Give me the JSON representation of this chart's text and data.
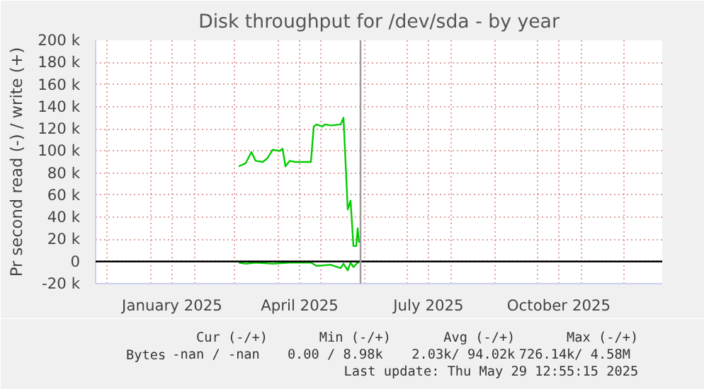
{
  "chart_data": {
    "type": "line",
    "title": "Disk throughput for /dev/sda - by year",
    "ylabel": "Pr second read (-) / write (+)",
    "xlim": [
      "2024-11-23",
      "2025-12-28"
    ],
    "xticks": [
      {
        "value": "2024-12-01",
        "label": null
      },
      {
        "value": "2025-01-01",
        "label": null
      },
      {
        "value": "2025-01-16",
        "label": "January 2025"
      },
      {
        "value": "2025-02-01",
        "label": null
      },
      {
        "value": "2025-03-01",
        "label": null
      },
      {
        "value": "2025-04-01",
        "label": null
      },
      {
        "value": "2025-04-16",
        "label": "April 2025"
      },
      {
        "value": "2025-05-01",
        "label": null
      },
      {
        "value": "2025-06-01",
        "label": null
      },
      {
        "value": "2025-07-01",
        "label": null
      },
      {
        "value": "2025-07-16",
        "label": "July 2025"
      },
      {
        "value": "2025-08-01",
        "label": null
      },
      {
        "value": "2025-09-01",
        "label": null
      },
      {
        "value": "2025-10-01",
        "label": null
      },
      {
        "value": "2025-10-16",
        "label": "October 2025"
      },
      {
        "value": "2025-11-01",
        "label": null
      },
      {
        "value": "2025-12-01",
        "label": null
      }
    ],
    "ylim": [
      -20000,
      200000
    ],
    "yticks": [
      {
        "value": -20000,
        "label": "-20 k"
      },
      0,
      {
        "value": 20000,
        "label": "20 k"
      },
      {
        "value": 40000,
        "label": "40 k"
      },
      {
        "value": 60000,
        "label": "60 k"
      },
      {
        "value": 80000,
        "label": "80 k"
      },
      {
        "value": 100000,
        "label": "100 k"
      },
      {
        "value": 120000,
        "label": "120 k"
      },
      {
        "value": 140000,
        "label": "140 k"
      },
      {
        "value": 160000,
        "label": "160 k"
      },
      {
        "value": 180000,
        "label": "180 k"
      },
      {
        "value": 200000,
        "label": "200 k"
      }
    ],
    "grid": true,
    "legend": "bottom left",
    "marker": "none",
    "line_style": "solid",
    "series": [
      {
        "name": "Bytes",
        "color": "#00cc00",
        "x": [
          "2025-03-04",
          "2025-03-09",
          "2025-03-13",
          "2025-03-16",
          "2025-03-21",
          "2025-03-24",
          "2025-03-28",
          "2025-04-02",
          "2025-04-04",
          "2025-04-06",
          "2025-04-09",
          "2025-04-13",
          "2025-04-24",
          "2025-04-26",
          "2025-04-28",
          "2025-05-02",
          "2025-05-04",
          "2025-05-08",
          "2025-05-15",
          "2025-05-17",
          "2025-05-20",
          "2025-05-22",
          "2025-05-24",
          "2025-05-26",
          "2025-05-27",
          "2025-05-28"
        ],
        "values": [
          86000,
          89000,
          99000,
          91000,
          90000,
          93000,
          101000,
          100000,
          102000,
          86000,
          91000,
          90000,
          90000,
          122000,
          124000,
          122000,
          124000,
          123000,
          124000,
          130000,
          47000,
          55000,
          14000,
          14000,
          30000,
          17000
        ]
      },
      {
        "color": "#00cc00",
        "x": [
          "2025-03-04",
          "2025-03-09",
          "2025-03-16",
          "2025-03-28",
          "2025-04-09",
          "2025-04-24",
          "2025-04-28",
          "2025-05-08",
          "2025-05-15",
          "2025-05-17",
          "2025-05-20",
          "2025-05-22",
          "2025-05-24",
          "2025-05-27",
          "2025-05-28"
        ],
        "values": [
          -1000,
          -2000,
          -1000,
          -2000,
          -1000,
          -1000,
          -4000,
          -3000,
          -6000,
          -2000,
          -8000,
          -1000,
          -5000,
          -1000,
          -1000
        ]
      }
    ],
    "ref_lines": [
      {
        "axis": "y",
        "value": 0,
        "color": "#000000"
      },
      {
        "axis": "x",
        "value": "2025-05-29",
        "color": "#999999"
      }
    ],
    "annotations": [
      "Cur (-/+)",
      "Min (-/+)",
      "Avg (-/+)",
      "Max (-/+)",
      "-nan /  -nan",
      "0.00 /  8.98k",
      "2.03k/ 94.02k",
      "726.14k/  4.58M",
      "Last update: Thu May 29 12:55:15 2025"
    ]
  }
}
